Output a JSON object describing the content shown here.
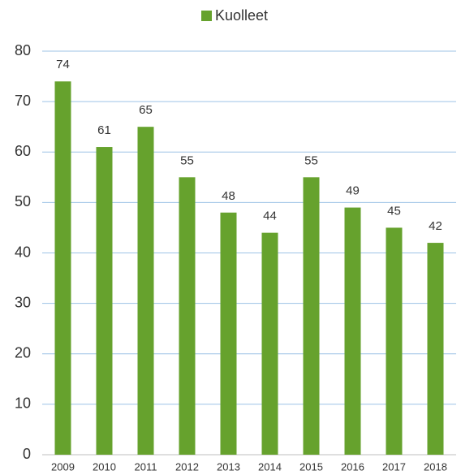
{
  "chart_data": {
    "type": "bar",
    "categories": [
      "2009",
      "2010",
      "2011",
      "2012",
      "2013",
      "2014",
      "2015",
      "2016",
      "2017",
      "2018"
    ],
    "series": [
      {
        "name": "Kuolleet",
        "color": "#66a22d",
        "values": [
          74,
          61,
          65,
          55,
          48,
          44,
          55,
          49,
          45,
          42
        ]
      }
    ],
    "ylim": [
      0,
      80
    ],
    "yticks": [
      0,
      10,
      20,
      30,
      40,
      50,
      60,
      70,
      80
    ],
    "grid": true,
    "legend": "top"
  }
}
